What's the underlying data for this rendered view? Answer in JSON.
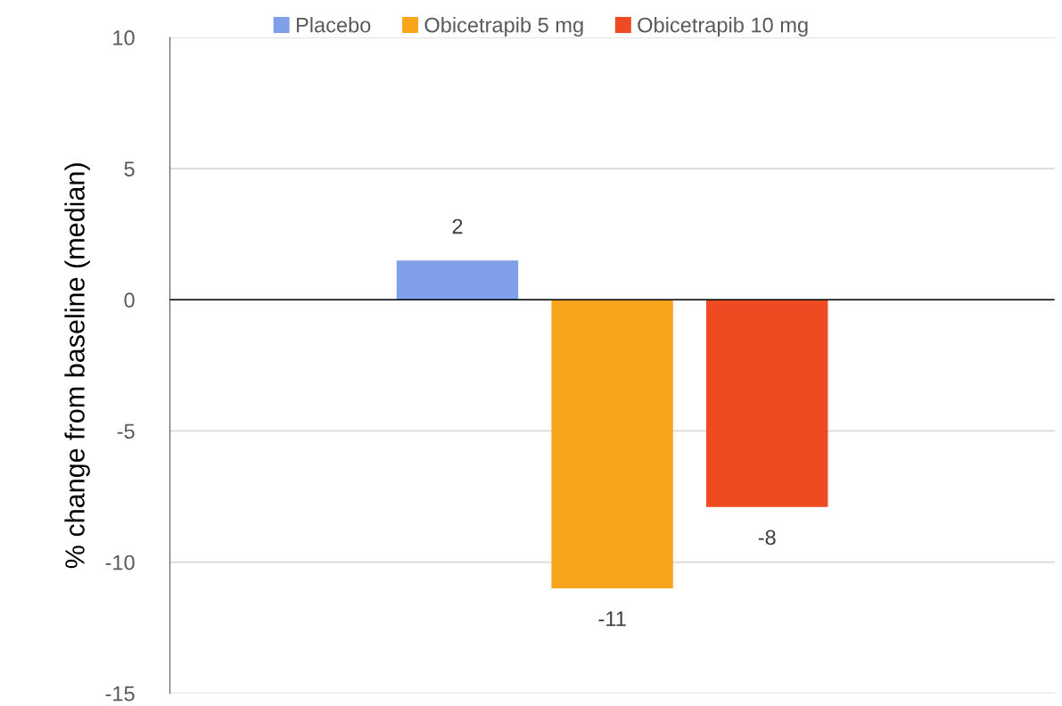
{
  "chart_data": {
    "type": "bar",
    "ylabel": "% change from baseline (median)",
    "categories": [
      null
    ],
    "series": [
      {
        "name": "Placebo",
        "color": "#7f9fe8",
        "values": [
          1.5
        ],
        "value_labels": [
          "2"
        ]
      },
      {
        "name": "Obicetrapib 5 mg",
        "color": "#f8a51c",
        "values": [
          -11
        ],
        "value_labels": [
          "-11"
        ]
      },
      {
        "name": "Obicetrapib 10 mg",
        "color": "#ef4b22",
        "values": [
          -7.9
        ],
        "value_labels": [
          "-8"
        ]
      }
    ],
    "ylim": [
      -15,
      10
    ],
    "yticks": [
      -15,
      -10,
      -5,
      0,
      5,
      10
    ],
    "grid": "y",
    "legend": "top"
  }
}
